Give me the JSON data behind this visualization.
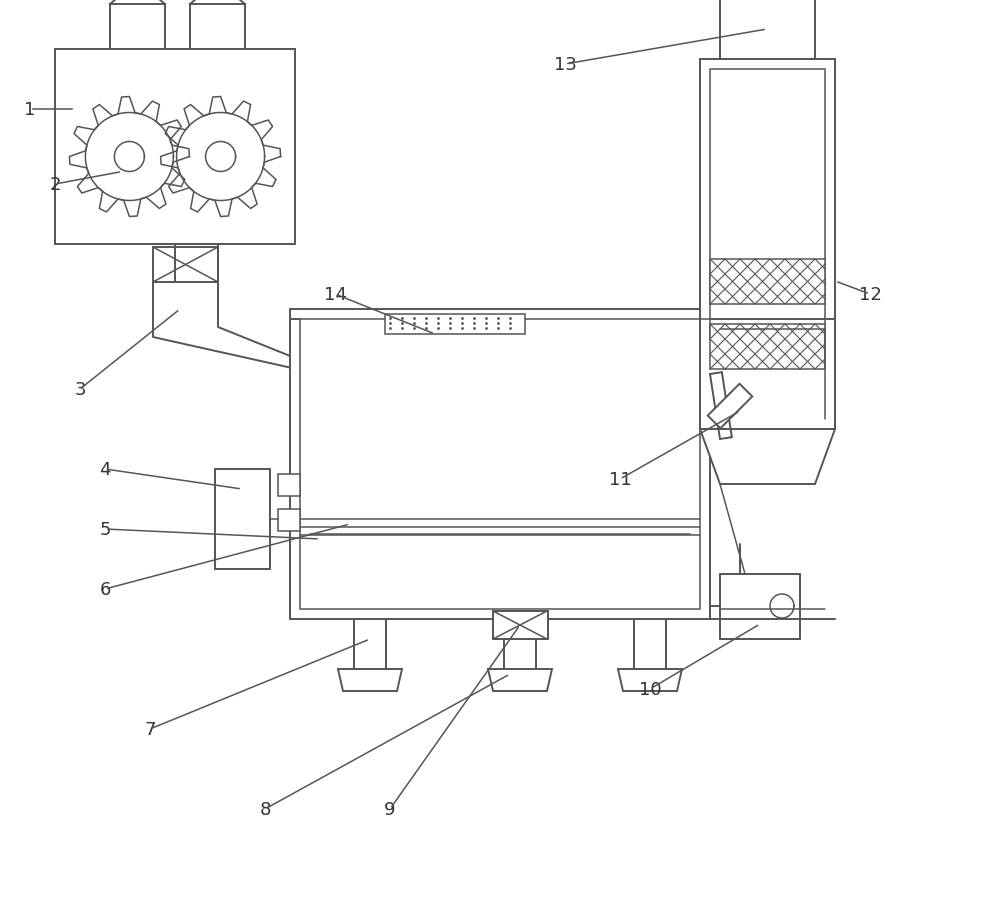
{
  "bg_color": "#ffffff",
  "line_color": "#555555",
  "lw": 1.4,
  "lw2": 1.1
}
